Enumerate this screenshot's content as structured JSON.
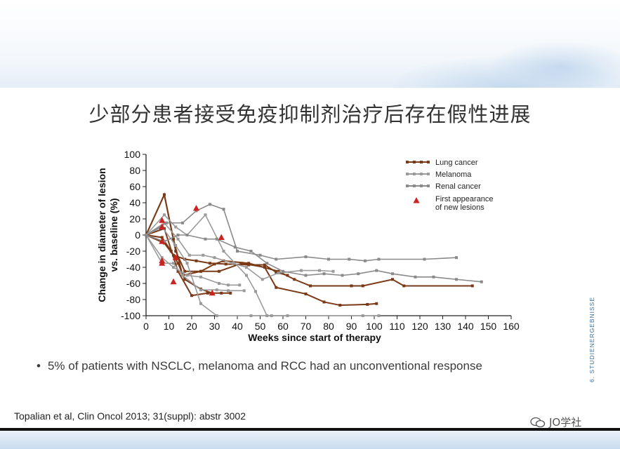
{
  "slide": {
    "title": "少部分患者接受免疫抑制剂治疗后存在假性进展",
    "bullet": "5% of patients with NSCLC, melanoma and RCC had an unconventional response",
    "citation": "Topalian et al, Clin Oncol 2013; 31(suppl): abstr 3002",
    "side_label": "6. STUDIENERGEBNISSE",
    "watermark": "JO学社"
  },
  "colors": {
    "lung": "#7a3a18",
    "melanoma": "#9a9a9a",
    "renal": "#8a8a8a",
    "marker": "#cc2222"
  },
  "chart_data": {
    "type": "line",
    "xlabel": "Weeks since start of therapy",
    "ylabel": "Change in diameter of lesion vs. baseline (%)",
    "xlim": [
      0,
      160
    ],
    "ylim": [
      -100,
      100
    ],
    "xticks": [
      0,
      10,
      20,
      30,
      40,
      50,
      60,
      70,
      80,
      90,
      100,
      110,
      120,
      130,
      140,
      150,
      160
    ],
    "yticks": [
      100,
      80,
      60,
      40,
      20,
      0,
      -20,
      -40,
      -60,
      -80,
      -100
    ],
    "grid": false,
    "legend": {
      "placement": "top-right",
      "entries": [
        {
          "label": "Lung cancer",
          "kind": "lung"
        },
        {
          "label": "Melanoma",
          "kind": "melanoma"
        },
        {
          "label": "Renal cancer",
          "kind": "renal"
        },
        {
          "label": "First appearance of new lesions",
          "kind": "marker"
        }
      ]
    },
    "series": [
      {
        "kind": "lung",
        "points": [
          [
            0,
            0
          ],
          [
            8,
            50
          ],
          [
            13,
            -20
          ],
          [
            17,
            -45
          ],
          [
            24,
            -45
          ],
          [
            32,
            -45
          ],
          [
            42,
            -35
          ],
          [
            52,
            -40
          ],
          [
            57,
            -65
          ],
          [
            70,
            -73
          ],
          [
            78,
            -83
          ],
          [
            85,
            -87
          ],
          [
            97,
            -86
          ],
          [
            101,
            -85
          ]
        ]
      },
      {
        "kind": "lung",
        "points": [
          [
            0,
            0
          ],
          [
            8,
            50
          ],
          [
            12,
            -5
          ],
          [
            16,
            -50
          ],
          [
            24,
            -45
          ],
          [
            30,
            -36
          ],
          [
            34,
            -32
          ],
          [
            45,
            -35
          ],
          [
            58,
            -45
          ],
          [
            65,
            -55
          ],
          [
            72,
            -63
          ],
          [
            90,
            -63
          ],
          [
            95,
            -63
          ],
          [
            108,
            -55
          ],
          [
            113,
            -63
          ],
          [
            143,
            -63
          ]
        ]
      },
      {
        "kind": "lung",
        "points": [
          [
            0,
            0
          ],
          [
            8,
            8
          ],
          [
            14,
            -45
          ],
          [
            20,
            -75
          ],
          [
            27,
            -72
          ],
          [
            33,
            -72
          ],
          [
            37,
            -72
          ]
        ]
      },
      {
        "kind": "lung",
        "points": [
          [
            0,
            0
          ],
          [
            7,
            -3
          ],
          [
            11,
            -20
          ],
          [
            14,
            -35
          ],
          [
            17,
            -55
          ],
          [
            24,
            -67
          ],
          [
            29,
            -72
          ]
        ]
      },
      {
        "kind": "lung",
        "points": [
          [
            0,
            0
          ],
          [
            8,
            -10
          ],
          [
            12,
            -25
          ],
          [
            17,
            -30
          ],
          [
            22,
            -32
          ],
          [
            28,
            -35
          ],
          [
            35,
            -36
          ],
          [
            45,
            -37
          ],
          [
            52,
            -37
          ],
          [
            57,
            -46
          ],
          [
            62,
            -50
          ]
        ]
      },
      {
        "kind": "melanoma",
        "points": [
          [
            0,
            0
          ],
          [
            7,
            -35
          ],
          [
            12,
            -35
          ],
          [
            16,
            -50
          ],
          [
            24,
            -68
          ],
          [
            31,
            -68
          ],
          [
            36,
            -69
          ],
          [
            43,
            -69
          ]
        ]
      },
      {
        "kind": "melanoma",
        "points": [
          [
            0,
            0
          ],
          [
            7,
            -28
          ],
          [
            12,
            -40
          ],
          [
            18,
            -50
          ],
          [
            24,
            -52
          ],
          [
            32,
            -60
          ],
          [
            36,
            -62
          ],
          [
            41,
            -62
          ]
        ]
      },
      {
        "kind": "melanoma",
        "points": [
          [
            0,
            0
          ],
          [
            7,
            10
          ],
          [
            13,
            -13
          ],
          [
            18,
            -35
          ],
          [
            24,
            -85
          ],
          [
            31,
            -100
          ],
          [
            46,
            -100
          ],
          [
            55,
            -100
          ],
          [
            62,
            -100
          ]
        ]
      },
      {
        "kind": "melanoma",
        "points": [
          [
            0,
            0
          ],
          [
            8,
            25
          ],
          [
            13,
            10
          ],
          [
            18,
            0
          ],
          [
            26,
            25
          ],
          [
            34,
            -20
          ],
          [
            44,
            -50
          ],
          [
            48,
            -70
          ],
          [
            53,
            -100
          ],
          [
            95,
            -100
          ],
          [
            102,
            -100
          ]
        ]
      },
      {
        "kind": "melanoma",
        "points": [
          [
            0,
            0
          ],
          [
            8,
            15
          ],
          [
            14,
            -5
          ],
          [
            19,
            -25
          ],
          [
            25,
            -25
          ],
          [
            30,
            -28
          ],
          [
            38,
            -35
          ],
          [
            44,
            -40
          ],
          [
            51,
            -55
          ],
          [
            58,
            -47
          ],
          [
            68,
            -44
          ],
          [
            76,
            -44
          ],
          [
            82,
            -45
          ]
        ]
      },
      {
        "kind": "renal",
        "points": [
          [
            0,
            0
          ],
          [
            9,
            15
          ],
          [
            16,
            15
          ],
          [
            22,
            30
          ],
          [
            28,
            38
          ],
          [
            34,
            32
          ],
          [
            40,
            -20
          ],
          [
            50,
            -25
          ],
          [
            57,
            -30
          ],
          [
            70,
            -27
          ],
          [
            80,
            -30
          ],
          [
            89,
            -30
          ],
          [
            96,
            -32
          ],
          [
            102,
            -30
          ],
          [
            122,
            -30
          ],
          [
            136,
            -28
          ]
        ]
      },
      {
        "kind": "renal",
        "points": [
          [
            0,
            0
          ],
          [
            8,
            -8
          ],
          [
            14,
            0
          ],
          [
            18,
            0
          ],
          [
            26,
            -5
          ],
          [
            31,
            -5
          ],
          [
            39,
            -15
          ],
          [
            46,
            -20
          ],
          [
            53,
            -35
          ],
          [
            60,
            -45
          ],
          [
            70,
            -50
          ],
          [
            78,
            -48
          ],
          [
            86,
            -50
          ],
          [
            93,
            -48
          ],
          [
            101,
            -44
          ],
          [
            108,
            -48
          ],
          [
            118,
            -52
          ],
          [
            126,
            -52
          ],
          [
            136,
            -55
          ],
          [
            147,
            -58
          ]
        ]
      }
    ],
    "new_lesion_markers": [
      [
        7,
        18
      ],
      [
        7,
        10
      ],
      [
        7,
        -8
      ],
      [
        7,
        -32
      ],
      [
        7,
        -35
      ],
      [
        12,
        -58
      ],
      [
        13,
        -28
      ],
      [
        22,
        33
      ],
      [
        29,
        -72
      ],
      [
        33,
        -3
      ]
    ]
  }
}
